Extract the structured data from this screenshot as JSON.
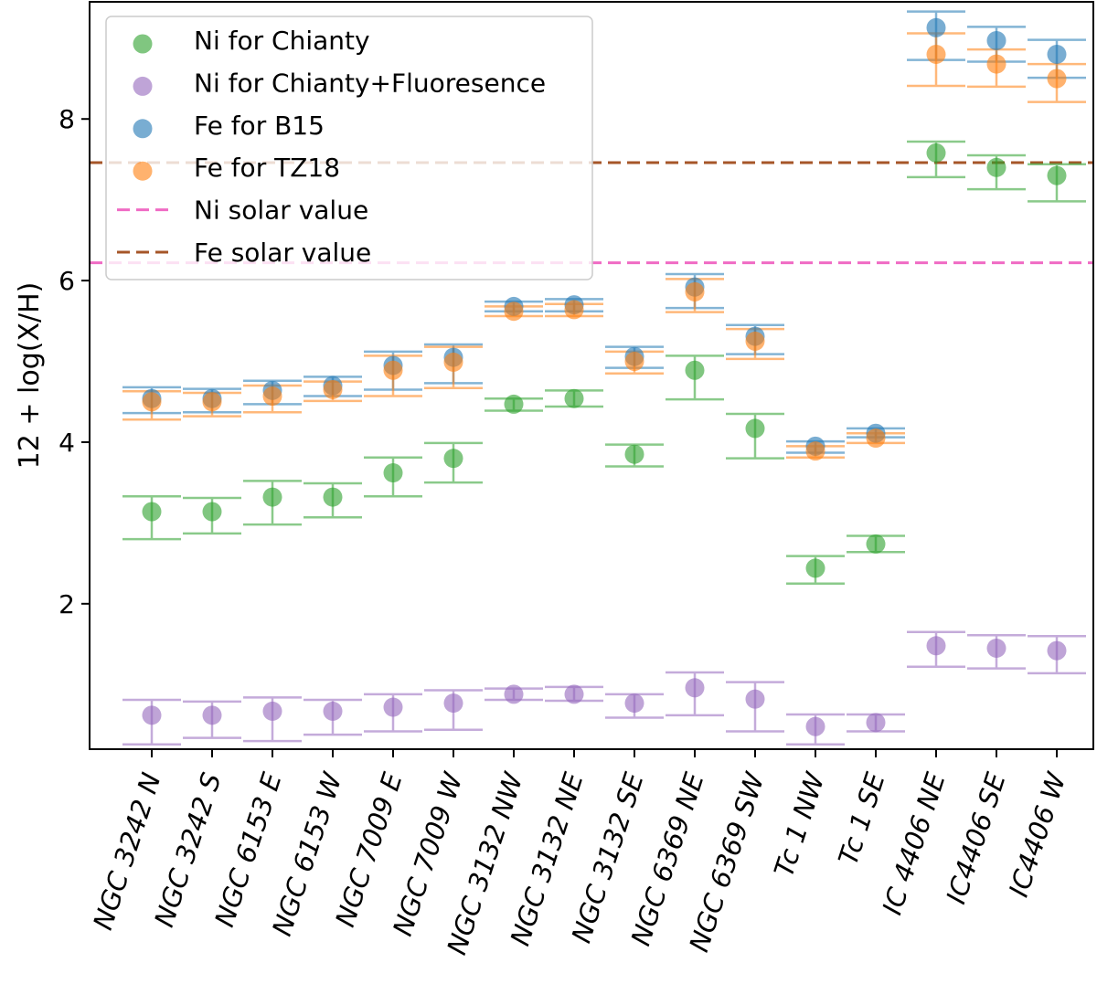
{
  "chart_data": {
    "type": "scatter",
    "title": "",
    "xlabel": "",
    "ylabel": "12 + log(X/H)",
    "ylim": [
      0.2,
      9.45
    ],
    "yticks": [
      2,
      4,
      6,
      8
    ],
    "grid": false,
    "legend_placement": "top-left",
    "categories": [
      "NGC 3242 N",
      "NGC 3242 S",
      "NGC 6153 E",
      "NGC 6153 W",
      "NGC 7009 E",
      "NGC 7009 W",
      "NGC 3132 NW",
      "NGC 3132 NE",
      "NGC 3132 SE",
      "NGC 6369 NE",
      "NGC 6369 SW",
      "Tc 1 NW",
      "Tc 1 SE",
      "IC 4406 NE",
      "IC4406 SE",
      "IC4406 W"
    ],
    "series": [
      {
        "name": "Ni for Chianty",
        "color": "#2ca02c",
        "values": [
          3.14,
          3.14,
          3.32,
          3.32,
          3.62,
          3.8,
          4.47,
          4.54,
          3.85,
          4.89,
          4.17,
          2.44,
          2.74,
          7.58,
          7.4,
          7.3
        ],
        "lower": [
          2.8,
          2.87,
          2.98,
          3.07,
          3.33,
          3.5,
          4.39,
          4.44,
          3.7,
          4.53,
          3.8,
          2.25,
          2.64,
          7.28,
          7.13,
          6.98
        ],
        "upper": [
          3.33,
          3.31,
          3.52,
          3.49,
          3.81,
          3.99,
          4.54,
          4.64,
          3.97,
          5.07,
          4.35,
          2.59,
          2.84,
          7.72,
          7.55,
          7.44
        ]
      },
      {
        "name": "Ni for Chianty+Fluoresence",
        "color": "#9467bd",
        "values": [
          0.62,
          0.62,
          0.67,
          0.67,
          0.72,
          0.77,
          0.88,
          0.88,
          0.77,
          0.96,
          0.82,
          0.48,
          0.53,
          1.48,
          1.45,
          1.42
        ],
        "lower": [
          0.26,
          0.34,
          0.3,
          0.38,
          0.42,
          0.44,
          0.81,
          0.8,
          0.59,
          0.62,
          0.42,
          0.26,
          0.42,
          1.22,
          1.2,
          1.14
        ],
        "upper": [
          0.81,
          0.79,
          0.84,
          0.81,
          0.88,
          0.93,
          0.95,
          0.97,
          0.88,
          1.15,
          1.03,
          0.63,
          0.63,
          1.65,
          1.61,
          1.6
        ]
      },
      {
        "name": "Fe for B15",
        "color": "#1f77b4",
        "values": [
          4.54,
          4.54,
          4.64,
          4.7,
          4.95,
          5.05,
          5.68,
          5.7,
          5.06,
          5.92,
          5.31,
          3.95,
          4.11,
          9.13,
          8.97,
          8.8
        ],
        "lower": [
          4.36,
          4.37,
          4.47,
          4.57,
          4.65,
          4.73,
          5.62,
          5.62,
          4.92,
          5.66,
          5.09,
          3.87,
          4.06,
          8.73,
          8.71,
          8.51
        ],
        "upper": [
          4.68,
          4.66,
          4.76,
          4.81,
          5.12,
          5.21,
          5.74,
          5.77,
          5.18,
          6.08,
          5.45,
          4.01,
          4.17,
          9.33,
          9.14,
          8.98
        ]
      },
      {
        "name": "Fe for TZ18",
        "color": "#ff7f0e",
        "values": [
          4.5,
          4.5,
          4.57,
          4.65,
          4.89,
          4.99,
          5.62,
          5.64,
          5.0,
          5.86,
          5.25,
          3.89,
          4.05,
          8.8,
          8.68,
          8.5
        ],
        "lower": [
          4.28,
          4.32,
          4.37,
          4.51,
          4.57,
          4.67,
          5.56,
          5.56,
          4.85,
          5.61,
          5.03,
          3.81,
          3.99,
          8.41,
          8.4,
          8.21
        ],
        "upper": [
          4.63,
          4.61,
          4.7,
          4.75,
          5.07,
          5.18,
          5.68,
          5.71,
          5.12,
          6.02,
          5.4,
          3.95,
          4.11,
          9.06,
          8.86,
          8.68
        ]
      }
    ],
    "hlines": [
      {
        "name": "Ni solar value",
        "value": 6.22,
        "color": "#f06bc4"
      },
      {
        "name": "Fe solar value",
        "value": 7.46,
        "color": "#a65628"
      }
    ]
  }
}
